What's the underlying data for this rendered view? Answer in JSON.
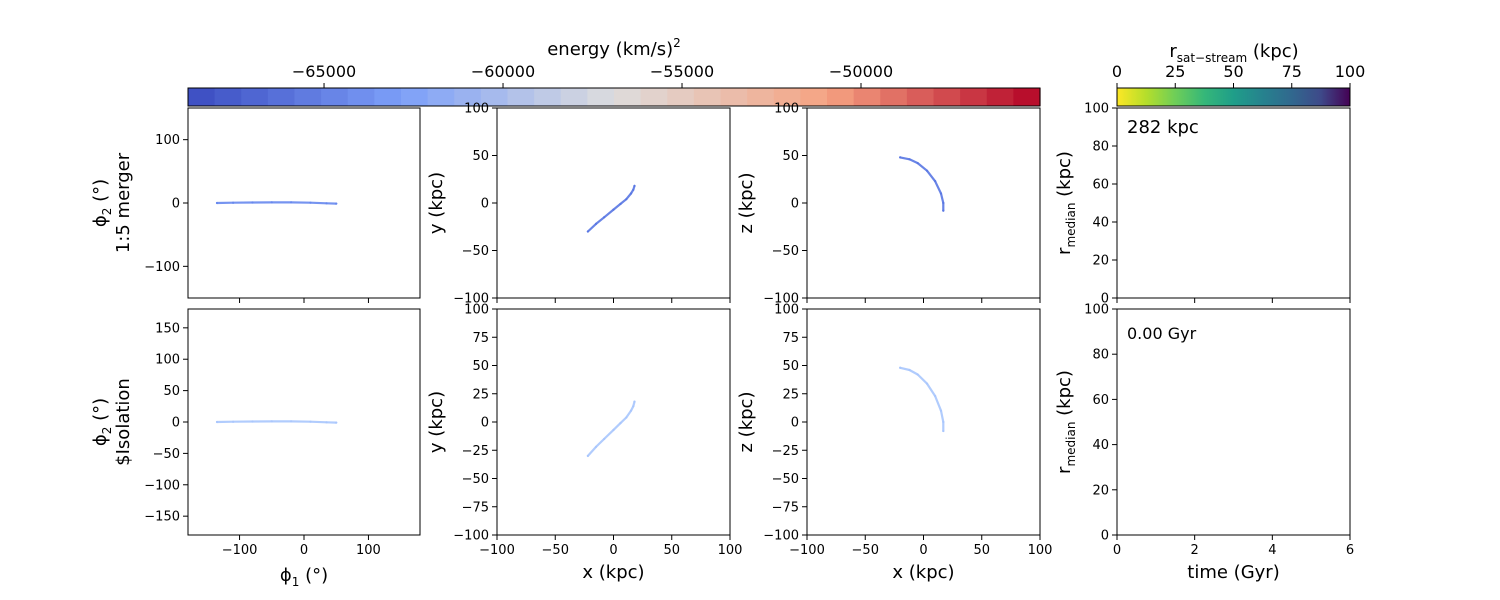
{
  "colorbars": {
    "energy": {
      "label_main": "energy (km/s)",
      "label_sup": "2",
      "ticks": [
        {
          "value": -65000,
          "label": "−65000"
        },
        {
          "value": -60000,
          "label": "−60000"
        },
        {
          "value": -55000,
          "label": "−55000"
        },
        {
          "value": -50000,
          "label": "−50000"
        }
      ],
      "range": [
        -68800,
        -45000
      ],
      "colormap": "coolwarm"
    },
    "r_sat_stream": {
      "label_main": "r",
      "label_sub": "sat−stream",
      "label_unit": " (kpc)",
      "ticks": [
        {
          "value": 0,
          "label": "0"
        },
        {
          "value": 25,
          "label": "25"
        },
        {
          "value": 50,
          "label": "50"
        },
        {
          "value": 75,
          "label": "75"
        },
        {
          "value": 100,
          "label": "100"
        }
      ],
      "range": [
        0,
        100
      ],
      "colormap": "viridis_r"
    }
  },
  "rows": [
    {
      "row_label": "1:5 merger"
    },
    {
      "row_label": "$Isolation"
    }
  ],
  "annotations": {
    "distance": "282 kpc",
    "time": "0.00 Gyr"
  },
  "chart_data": [
    {
      "type": "scatter",
      "panel": "row1-phi",
      "xlabel": "",
      "ylabel_main": "ϕ",
      "ylabel_sub": "2",
      "ylabel_unit": " (°)",
      "xlim": [
        -180,
        180
      ],
      "ylim": [
        -150,
        150
      ],
      "xticks": [
        -100,
        0,
        100
      ],
      "yticks": [
        -100,
        0,
        100
      ],
      "xtick_labels_visible": false,
      "series": [
        {
          "points": [
            [
              -135,
              0
            ],
            [
              -110,
              0.4
            ],
            [
              -80,
              0.8
            ],
            [
              -50,
              1
            ],
            [
              -20,
              1
            ],
            [
              10,
              0.5
            ],
            [
              35,
              -0.5
            ],
            [
              50,
              -1
            ]
          ],
          "color": "#6788ee"
        }
      ]
    },
    {
      "type": "scatter",
      "panel": "row1-xy",
      "xlabel": "",
      "ylabel": "y (kpc)",
      "xlim": [
        -100,
        100
      ],
      "ylim": [
        -100,
        100
      ],
      "xticks": [
        -100,
        -50,
        0,
        50,
        100
      ],
      "yticks": [
        -100,
        -50,
        0,
        50,
        100
      ],
      "xtick_labels_visible": false,
      "series": [
        {
          "points": [
            [
              -22,
              -30
            ],
            [
              -15,
              -22
            ],
            [
              -8,
              -15
            ],
            [
              0,
              -7
            ],
            [
              6,
              -1
            ],
            [
              11,
              4
            ],
            [
              15,
              10
            ],
            [
              17,
              14
            ],
            [
              18,
              18
            ]
          ],
          "color": "#5977e3"
        }
      ]
    },
    {
      "type": "scatter",
      "panel": "row1-xz",
      "xlabel": "",
      "ylabel": "z (kpc)",
      "xlim": [
        -100,
        100
      ],
      "ylim": [
        -100,
        100
      ],
      "xticks": [
        -100,
        -50,
        0,
        50,
        100
      ],
      "yticks": [
        -100,
        -50,
        0,
        50,
        100
      ],
      "xtick_labels_visible": false,
      "series": [
        {
          "points": [
            [
              -20,
              48
            ],
            [
              -12,
              46
            ],
            [
              -5,
              42
            ],
            [
              3,
              34
            ],
            [
              10,
              23
            ],
            [
              15,
              10
            ],
            [
              17,
              0
            ],
            [
              17,
              -8
            ]
          ],
          "color": "#5977e3"
        }
      ]
    },
    {
      "type": "line",
      "panel": "row1-rmedian",
      "xlabel": "",
      "ylabel_main": "r",
      "ylabel_sub": "median",
      "ylabel_unit": " (kpc)",
      "xlim": [
        0,
        6
      ],
      "ylim": [
        0,
        100
      ],
      "xticks": [
        0,
        2,
        4,
        6
      ],
      "yticks": [
        0,
        20,
        40,
        60,
        80,
        100
      ],
      "xtick_labels_visible": false,
      "series": []
    },
    {
      "type": "scatter",
      "panel": "row2-phi",
      "xlabel_main": "ϕ",
      "xlabel_sub": "1",
      "xlabel_unit": " (°)",
      "ylabel_main": "ϕ",
      "ylabel_sub": "2",
      "ylabel_unit": " (°)",
      "xlim": [
        -180,
        180
      ],
      "ylim": [
        -180,
        180
      ],
      "xticks": [
        -100,
        0,
        100
      ],
      "yticks": [
        -150,
        -100,
        -50,
        0,
        50,
        100,
        150
      ],
      "series": [
        {
          "points": [
            [
              -135,
              0
            ],
            [
              -110,
              0.4
            ],
            [
              -80,
              0.8
            ],
            [
              -50,
              1
            ],
            [
              -20,
              1
            ],
            [
              10,
              0.5
            ],
            [
              35,
              -0.5
            ],
            [
              50,
              -1
            ]
          ],
          "color": "#a9c6fd"
        }
      ]
    },
    {
      "type": "scatter",
      "panel": "row2-xy",
      "xlabel": "x (kpc)",
      "ylabel": "y (kpc)",
      "xlim": [
        -100,
        100
      ],
      "ylim": [
        -100,
        100
      ],
      "xticks": [
        -100,
        -50,
        0,
        50,
        100
      ],
      "yticks": [
        -100,
        -75,
        -50,
        -25,
        0,
        25,
        50,
        75,
        100
      ],
      "series": [
        {
          "points": [
            [
              -22,
              -30
            ],
            [
              -15,
              -22
            ],
            [
              -8,
              -15
            ],
            [
              0,
              -7
            ],
            [
              6,
              -1
            ],
            [
              11,
              4
            ],
            [
              15,
              10
            ],
            [
              17,
              14
            ],
            [
              18,
              18
            ]
          ],
          "color": "#a9c6fd"
        }
      ]
    },
    {
      "type": "scatter",
      "panel": "row2-xz",
      "xlabel": "x (kpc)",
      "ylabel": "z (kpc)",
      "xlim": [
        -100,
        100
      ],
      "ylim": [
        -100,
        100
      ],
      "xticks": [
        -100,
        -50,
        0,
        50,
        100
      ],
      "yticks": [
        -100,
        -75,
        -50,
        -25,
        0,
        25,
        50,
        75,
        100
      ],
      "series": [
        {
          "points": [
            [
              -20,
              48
            ],
            [
              -12,
              46
            ],
            [
              -5,
              42
            ],
            [
              3,
              34
            ],
            [
              10,
              23
            ],
            [
              15,
              10
            ],
            [
              17,
              0
            ],
            [
              17,
              -8
            ]
          ],
          "color": "#a9c6fd"
        }
      ]
    },
    {
      "type": "line",
      "panel": "row2-rmedian",
      "xlabel": "time (Gyr)",
      "ylabel_main": "r",
      "ylabel_sub": "median",
      "ylabel_unit": " (kpc)",
      "xlim": [
        0,
        6
      ],
      "ylim": [
        0,
        100
      ],
      "xticks": [
        0,
        2,
        4,
        6
      ],
      "yticks": [
        0,
        20,
        40,
        60,
        80,
        100
      ],
      "series": []
    }
  ]
}
